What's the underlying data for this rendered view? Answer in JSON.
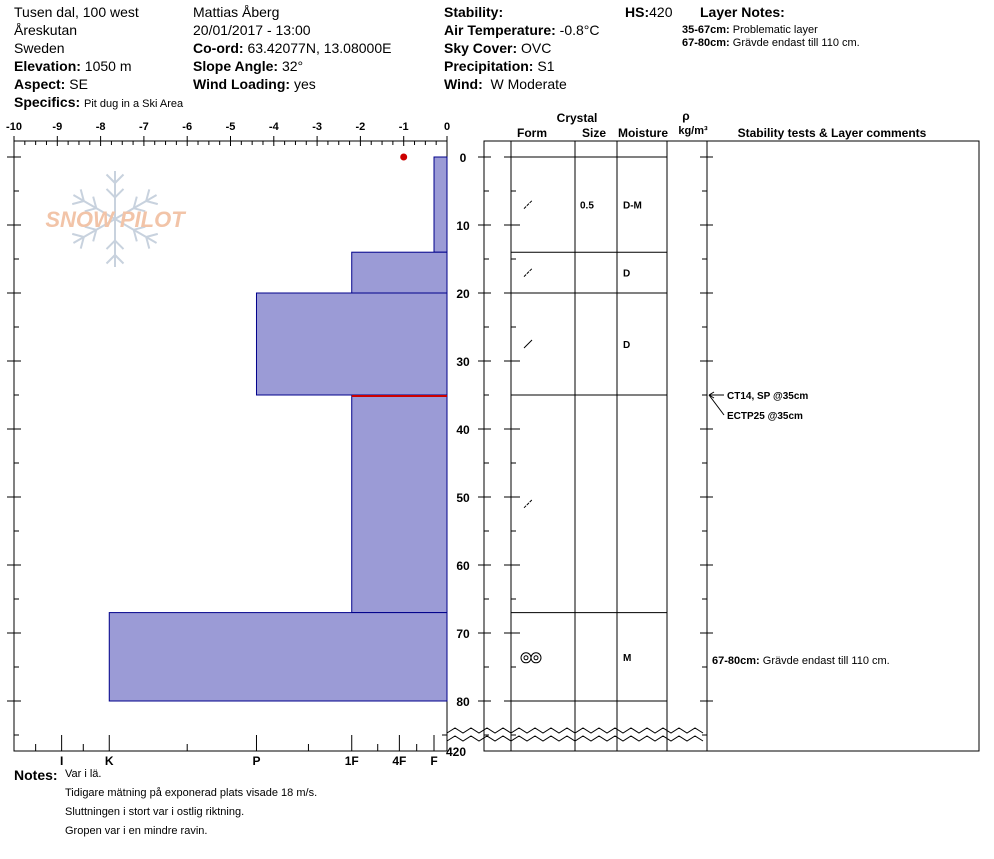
{
  "header": {
    "location": "Tusen dal, 100 west",
    "area": "Åreskutan",
    "country": "Sweden",
    "elevation_label": "Elevation:",
    "elevation": "1050 m",
    "aspect_label": "Aspect:",
    "aspect": "SE",
    "specifics_label": "Specifics:",
    "specifics": "Pit dug in a Ski Area",
    "observer": "Mattias Åberg",
    "datetime": "20/01/2017 - 13:00",
    "coord_label": "Co-ord:",
    "coord": "63.42077N, 13.08000E",
    "slope_label": "Slope Angle:",
    "slope": "32°",
    "wind_loading_label": "Wind Loading:",
    "wind_loading": "yes",
    "stability_label": "Stability:",
    "stability": "",
    "air_temp_label": "Air Temperature:",
    "air_temp": "-0.8°C",
    "sky_label": "Sky Cover:",
    "sky": "OVC",
    "precip_label": "Precipitation:",
    "precip": "S1",
    "wind_label": "Wind:",
    "wind": "W Moderate",
    "hs_label": "HS:",
    "hs": "420",
    "layer_notes_label": "Layer Notes:",
    "layer_notes": [
      {
        "range": "35-67cm:",
        "text": "Problematic layer"
      },
      {
        "range": "67-80cm:",
        "text": "Grävde endast till 110 cm."
      }
    ]
  },
  "table_headers": {
    "crystal": "Crystal",
    "form": "Form",
    "size": "Size",
    "moisture": "Moisture",
    "rho": "ρ",
    "density_unit": "kg/m³",
    "stability_col": "Stability tests & Layer comments"
  },
  "notes": {
    "label": "Notes:",
    "lines": [
      "Var i lä.",
      "Tidigare mätning på exponerad plats visade 18 m/s.",
      "Sluttningen i stort var i ostlig riktning.",
      "Gropen var i en mindre ravin."
    ]
  },
  "logo_text": "SNOW PILOT",
  "colors": {
    "profile_fill": "#9b9bd6",
    "profile_stroke": "#00008b",
    "weak_layer": "#cc0000",
    "temp_point": "#cc0000",
    "logo": "#f2c4a8",
    "snowflake": "#c8d2de"
  },
  "chart_data": {
    "type": "snow_profile",
    "hardness_axis": {
      "top_ticks": [
        "-10",
        "-9",
        "-8",
        "-7",
        "-6",
        "-5",
        "-4",
        "-3",
        "-2",
        "-1",
        "0"
      ],
      "bottom_ticks": [
        "I",
        "K",
        "P",
        "1F",
        "4F",
        "F"
      ],
      "range": [
        -10,
        0
      ]
    },
    "depth_axis": {
      "ticks": [
        "0",
        "10",
        "20",
        "30",
        "40",
        "50",
        "60",
        "70",
        "80"
      ],
      "range": [
        0,
        80
      ],
      "bottom_label": "420"
    },
    "layers": [
      {
        "top": 0,
        "bottom": 14,
        "hardness": -0.3,
        "form": "/",
        "size": "0.5",
        "moisture": "D-M"
      },
      {
        "top": 14,
        "bottom": 20,
        "hardness": -2.2,
        "form": "/",
        "size": "",
        "moisture": "D"
      },
      {
        "top": 20,
        "bottom": 35,
        "hardness": -4.4,
        "form": "/",
        "size": "",
        "moisture": "D"
      },
      {
        "top": 35,
        "bottom": 67,
        "hardness": -2.2,
        "form": "/",
        "size": "",
        "moisture": ""
      },
      {
        "top": 67,
        "bottom": 80,
        "hardness": -7.8,
        "form": "oo",
        "size": "",
        "moisture": "M"
      }
    ],
    "weak_layer_depth": 35,
    "temperature_points": [
      {
        "depth": 0,
        "temp": -1.0
      }
    ],
    "stability_tests": [
      {
        "depth": 35,
        "text": "CT14, SP @35cm"
      },
      {
        "depth": 35,
        "text": "ECTP25 @35cm"
      }
    ],
    "layer_comments": [
      {
        "depth": 74,
        "range": "67-80cm:",
        "text": "Grävde endast till 110 cm."
      }
    ]
  }
}
